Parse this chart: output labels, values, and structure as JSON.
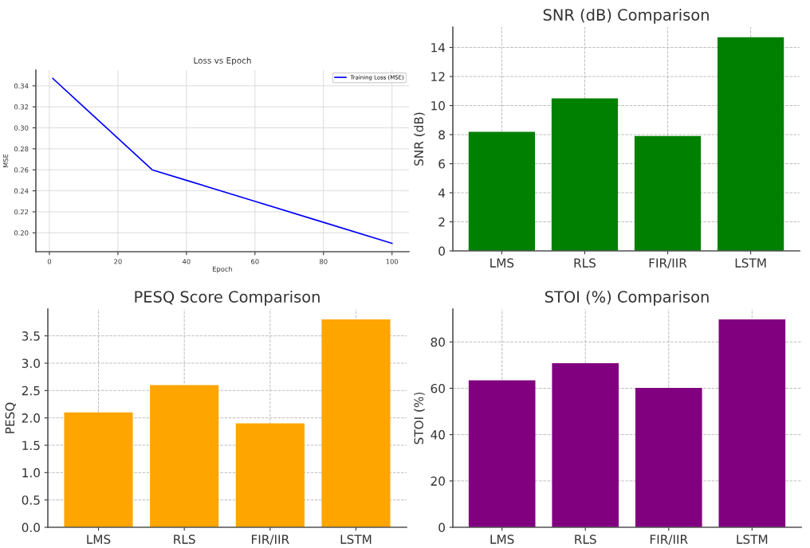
{
  "chart_data": [
    {
      "type": "line",
      "title": "Loss vs Epoch",
      "xlabel": "Epoch",
      "ylabel": "MSE",
      "series": [
        {
          "name": "Training Loss (MSE)",
          "color": "#0000ff",
          "x": [
            1,
            10,
            20,
            30,
            40,
            60,
            80,
            100
          ],
          "values": [
            0.347,
            0.32,
            0.29,
            0.26,
            0.25,
            0.23,
            0.21,
            0.19
          ]
        }
      ],
      "xlim": [
        -3.95,
        104.95
      ],
      "xticks": [
        0,
        20,
        40,
        60,
        80,
        100
      ],
      "ylim": [
        0.182,
        0.355
      ],
      "yticks": [
        {
          "value": 0.2,
          "label": "0.20"
        },
        {
          "value": 0.22,
          "label": "0.22"
        },
        {
          "value": 0.24,
          "label": "0.24"
        },
        {
          "value": 0.26,
          "label": "0.26"
        },
        {
          "value": 0.28,
          "label": "0.28"
        },
        {
          "value": 0.3,
          "label": "0.30"
        },
        {
          "value": 0.32,
          "label": "0.32"
        },
        {
          "value": 0.34,
          "label": "0.34"
        }
      ],
      "grid": true,
      "legend": "top right",
      "marker": "none",
      "line_style": "solid"
    },
    {
      "type": "bar",
      "title": "SNR (dB) Comparison",
      "ylabel": "SNR (dB)",
      "categories": [
        "LMS",
        "RLS",
        "FIR/IIR",
        "LSTM"
      ],
      "values": [
        8.2,
        10.5,
        7.9,
        14.7
      ],
      "color": "#008000",
      "ylim": [
        0,
        15.4
      ],
      "yticks": [
        0,
        2,
        4,
        6,
        8,
        10,
        12,
        14
      ],
      "grid": true
    },
    {
      "type": "bar",
      "title": "PESQ Score Comparison",
      "ylabel": "PESQ",
      "categories": [
        "LMS",
        "RLS",
        "FIR/IIR",
        "LSTM"
      ],
      "values": [
        2.1,
        2.6,
        1.9,
        3.8
      ],
      "color": "#ffa500",
      "ylim": [
        0,
        3.99
      ],
      "yticks": [
        {
          "value": 0,
          "label": "0.0"
        },
        {
          "value": 0.5,
          "label": "0.5"
        },
        {
          "value": 1,
          "label": "1.0"
        },
        {
          "value": 1.5,
          "label": "1.5"
        },
        {
          "value": 2,
          "label": "2.0"
        },
        {
          "value": 2.5,
          "label": "2.5"
        },
        {
          "value": 3,
          "label": "3.0"
        },
        {
          "value": 3.5,
          "label": "3.5"
        }
      ],
      "grid": true
    },
    {
      "type": "bar",
      "title": "STOI (%) Comparison",
      "ylabel": "STOI (%)",
      "categories": [
        "LMS",
        "RLS",
        "FIR/IIR",
        "LSTM"
      ],
      "values": [
        63.4,
        70.8,
        60.2,
        89.7
      ],
      "color": "#800080",
      "ylim": [
        0,
        94.2
      ],
      "yticks": [
        0,
        20,
        40,
        60,
        80
      ],
      "grid": true
    }
  ]
}
